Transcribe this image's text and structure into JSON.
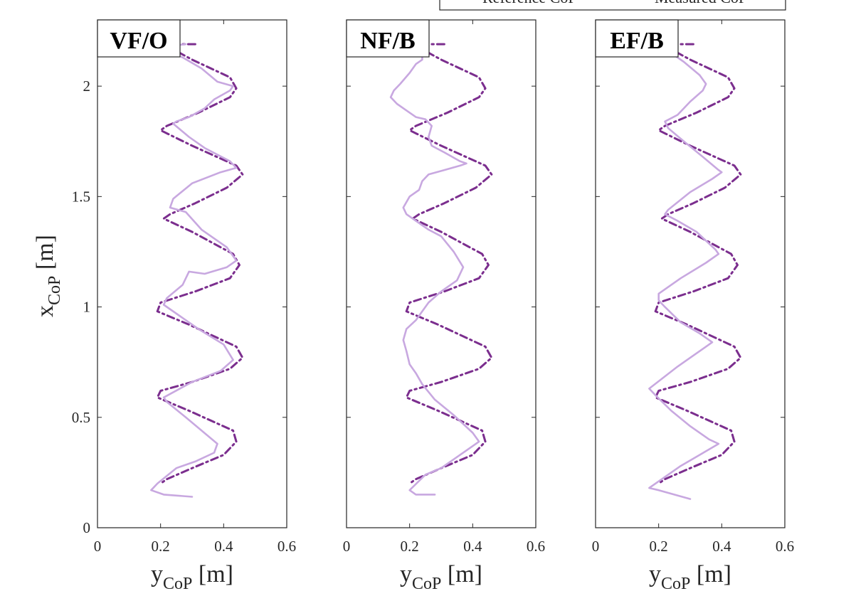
{
  "chart_data": {
    "type": "line",
    "legend": {
      "placement": "top",
      "entries": [
        {
          "label": "Reference CoP",
          "color": "#C8A8E0",
          "style": "solid"
        },
        {
          "label": "Measured CoP",
          "color": "#7B2E8E",
          "style": "dash-dot"
        }
      ]
    },
    "xlabel": "y",
    "xlabel_sub": "CoP",
    "xlabel_unit": "[m]",
    "ylabel": "x",
    "ylabel_sub": "CoP",
    "ylabel_unit": "[m]",
    "xlim": [
      0,
      0.6
    ],
    "ylim": [
      0,
      2.3
    ],
    "xticks": [
      "0",
      "0.2",
      "0.4",
      "0.6"
    ],
    "yticks": [
      "0",
      "0.5",
      "1",
      "1.5",
      "2"
    ],
    "ytick_values": [
      0,
      0.5,
      1,
      1.5,
      2
    ],
    "xtick_values": [
      0,
      0.2,
      0.4,
      0.6
    ],
    "panels": [
      {
        "title": "VF/O",
        "series": [
          {
            "name": "Measured CoP",
            "x": [
              0.31,
              0.22,
              0.21,
              0.3,
              0.42,
              0.44,
              0.42,
              0.32,
              0.22,
              0.2,
              0.3,
              0.44,
              0.46,
              0.41,
              0.31,
              0.23,
              0.21,
              0.3,
              0.43,
              0.45,
              0.42,
              0.31,
              0.2,
              0.19,
              0.29,
              0.44,
              0.46,
              0.42,
              0.3,
              0.2,
              0.19,
              0.29,
              0.43,
              0.44,
              0.4,
              0.3,
              0.22,
              0.2
            ],
            "y": [
              2.19,
              2.19,
              2.19,
              2.12,
              2.04,
              1.99,
              1.95,
              1.88,
              1.82,
              1.8,
              1.73,
              1.64,
              1.6,
              1.54,
              1.47,
              1.42,
              1.4,
              1.34,
              1.24,
              1.19,
              1.13,
              1.07,
              1.02,
              0.98,
              0.92,
              0.82,
              0.77,
              0.72,
              0.66,
              0.62,
              0.59,
              0.53,
              0.44,
              0.39,
              0.33,
              0.27,
              0.22,
              0.2
            ]
          },
          {
            "name": "Reference CoP",
            "x": [
              0.3,
              0.21,
              0.17,
              0.19,
              0.25,
              0.31,
              0.37,
              0.38,
              0.33,
              0.28,
              0.22,
              0.21,
              0.3,
              0.39,
              0.43,
              0.4,
              0.32,
              0.26,
              0.21,
              0.22,
              0.27,
              0.29,
              0.34,
              0.41,
              0.44,
              0.41,
              0.33,
              0.28,
              0.23,
              0.24,
              0.3,
              0.39,
              0.44,
              0.42,
              0.34,
              0.29,
              0.24,
              0.25,
              0.29,
              0.34,
              0.37,
              0.42,
              0.43,
              0.38,
              0.33,
              0.27,
              0.24,
              0.22,
              0.28
            ],
            "y": [
              0.14,
              0.15,
              0.17,
              0.2,
              0.27,
              0.3,
              0.34,
              0.38,
              0.44,
              0.5,
              0.57,
              0.59,
              0.66,
              0.71,
              0.76,
              0.83,
              0.9,
              0.96,
              1.01,
              1.04,
              1.1,
              1.16,
              1.15,
              1.18,
              1.21,
              1.27,
              1.35,
              1.43,
              1.45,
              1.49,
              1.56,
              1.61,
              1.63,
              1.66,
              1.72,
              1.77,
              1.83,
              1.84,
              1.86,
              1.9,
              1.94,
              1.98,
              2.0,
              2.02,
              2.08,
              2.13,
              2.15,
              2.18,
              2.19
            ]
          }
        ]
      },
      {
        "title": "NF/B",
        "series": [
          {
            "name": "Measured CoP",
            "x": [
              0.31,
              0.22,
              0.21,
              0.3,
              0.42,
              0.44,
              0.42,
              0.32,
              0.22,
              0.2,
              0.3,
              0.44,
              0.46,
              0.41,
              0.31,
              0.23,
              0.21,
              0.3,
              0.43,
              0.45,
              0.42,
              0.31,
              0.2,
              0.19,
              0.29,
              0.44,
              0.46,
              0.42,
              0.3,
              0.2,
              0.19,
              0.29,
              0.43,
              0.44,
              0.4,
              0.3,
              0.22,
              0.2
            ],
            "y": [
              2.19,
              2.19,
              2.19,
              2.12,
              2.04,
              1.99,
              1.95,
              1.88,
              1.82,
              1.8,
              1.73,
              1.64,
              1.6,
              1.54,
              1.47,
              1.42,
              1.4,
              1.34,
              1.24,
              1.19,
              1.13,
              1.07,
              1.02,
              0.98,
              0.92,
              0.82,
              0.77,
              0.72,
              0.66,
              0.62,
              0.59,
              0.53,
              0.44,
              0.39,
              0.33,
              0.27,
              0.22,
              0.2
            ]
          },
          {
            "name": "Reference CoP",
            "x": [
              0.28,
              0.22,
              0.2,
              0.25,
              0.3,
              0.36,
              0.42,
              0.4,
              0.34,
              0.28,
              0.24,
              0.22,
              0.2,
              0.19,
              0.18,
              0.19,
              0.22,
              0.24,
              0.26,
              0.3,
              0.35,
              0.37,
              0.34,
              0.3,
              0.26,
              0.22,
              0.19,
              0.18,
              0.2,
              0.23,
              0.24,
              0.26,
              0.31,
              0.36,
              0.38,
              0.36,
              0.31,
              0.27,
              0.26,
              0.27,
              0.25,
              0.22,
              0.19,
              0.16,
              0.14,
              0.15,
              0.17,
              0.2,
              0.22,
              0.24,
              0.24
            ],
            "y": [
              0.15,
              0.15,
              0.17,
              0.24,
              0.27,
              0.33,
              0.39,
              0.43,
              0.51,
              0.58,
              0.65,
              0.7,
              0.74,
              0.8,
              0.85,
              0.9,
              0.94,
              0.98,
              1.02,
              1.07,
              1.12,
              1.18,
              1.25,
              1.32,
              1.35,
              1.39,
              1.42,
              1.45,
              1.5,
              1.53,
              1.57,
              1.6,
              1.62,
              1.64,
              1.65,
              1.66,
              1.7,
              1.73,
              1.77,
              1.82,
              1.85,
              1.86,
              1.89,
              1.92,
              1.95,
              1.98,
              2.01,
              2.06,
              2.1,
              2.12,
              2.15
            ]
          }
        ]
      },
      {
        "title": "EF/B",
        "series": [
          {
            "name": "Measured CoP",
            "x": [
              0.31,
              0.22,
              0.21,
              0.3,
              0.42,
              0.44,
              0.42,
              0.32,
              0.22,
              0.2,
              0.3,
              0.44,
              0.46,
              0.41,
              0.31,
              0.23,
              0.21,
              0.3,
              0.43,
              0.45,
              0.42,
              0.31,
              0.2,
              0.19,
              0.29,
              0.44,
              0.46,
              0.42,
              0.3,
              0.2,
              0.19,
              0.29,
              0.43,
              0.44,
              0.4,
              0.3,
              0.22,
              0.2
            ],
            "y": [
              2.19,
              2.19,
              2.19,
              2.12,
              2.04,
              1.99,
              1.95,
              1.88,
              1.82,
              1.8,
              1.73,
              1.64,
              1.6,
              1.54,
              1.47,
              1.42,
              1.4,
              1.34,
              1.24,
              1.19,
              1.13,
              1.07,
              1.02,
              0.98,
              0.92,
              0.82,
              0.77,
              0.72,
              0.66,
              0.62,
              0.59,
              0.53,
              0.44,
              0.39,
              0.33,
              0.27,
              0.22,
              0.2
            ]
          },
          {
            "name": "Reference CoP",
            "x": [
              0.3,
              0.2,
              0.17,
              0.21,
              0.27,
              0.33,
              0.39,
              0.36,
              0.3,
              0.24,
              0.19,
              0.17,
              0.26,
              0.35,
              0.37,
              0.33,
              0.27,
              0.22,
              0.2,
              0.2,
              0.27,
              0.35,
              0.39,
              0.38,
              0.32,
              0.26,
              0.22,
              0.23,
              0.3,
              0.37,
              0.4,
              0.39,
              0.34,
              0.28,
              0.23,
              0.22,
              0.26,
              0.3,
              0.34,
              0.35,
              0.33,
              0.28,
              0.23,
              0.2,
              0.19
            ],
            "y": [
              0.13,
              0.17,
              0.18,
              0.22,
              0.28,
              0.33,
              0.38,
              0.4,
              0.46,
              0.53,
              0.6,
              0.63,
              0.73,
              0.82,
              0.84,
              0.88,
              0.93,
              1.0,
              1.03,
              1.06,
              1.13,
              1.2,
              1.24,
              1.26,
              1.34,
              1.39,
              1.42,
              1.44,
              1.52,
              1.58,
              1.61,
              1.62,
              1.68,
              1.75,
              1.81,
              1.84,
              1.87,
              1.93,
              1.98,
              2.01,
              2.05,
              2.11,
              2.16,
              2.19,
              2.21
            ]
          }
        ]
      }
    ]
  }
}
